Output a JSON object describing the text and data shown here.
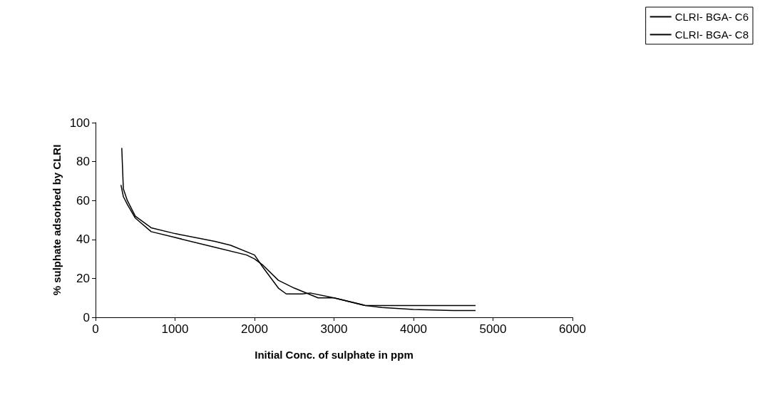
{
  "chart_data": {
    "type": "line",
    "xlabel": "Initial Conc. of sulphate in ppm",
    "ylabel": "% sulphate adsorbed by CLRI",
    "xlim": [
      0,
      6000
    ],
    "xticks": [
      0,
      1000,
      2000,
      3000,
      4000,
      5000,
      6000
    ],
    "ylim": [
      0,
      100
    ],
    "yticks": [
      0,
      20,
      40,
      60,
      80,
      100
    ],
    "grid": false,
    "legend": "top right",
    "marker": "none",
    "line_style": "solid",
    "series": [
      {
        "name": "CLRI- BGA- C6",
        "color": "#000000",
        "x": [
          330,
          350,
          400,
          500,
          700,
          1000,
          1500,
          1700,
          2000,
          2100,
          2300,
          2400,
          2600,
          2700,
          3000,
          3400,
          3600,
          4000,
          4500,
          4780
        ],
        "values": [
          87,
          66,
          60,
          52,
          46,
          43,
          39,
          37,
          32,
          26,
          15,
          12,
          12,
          12.5,
          10,
          6,
          5,
          4,
          3.5,
          3.5
        ]
      },
      {
        "name": "CLRI- BGA- C8",
        "color": "#000000",
        "x": [
          320,
          350,
          400,
          500,
          700,
          1000,
          1500,
          1900,
          2000,
          2100,
          2300,
          2500,
          2800,
          3000,
          3400,
          3600,
          4000,
          4780
        ],
        "values": [
          68,
          62,
          58,
          51,
          44,
          41,
          36,
          32,
          30,
          27,
          19,
          15,
          10,
          10,
          6,
          6,
          6,
          6
        ]
      }
    ]
  }
}
